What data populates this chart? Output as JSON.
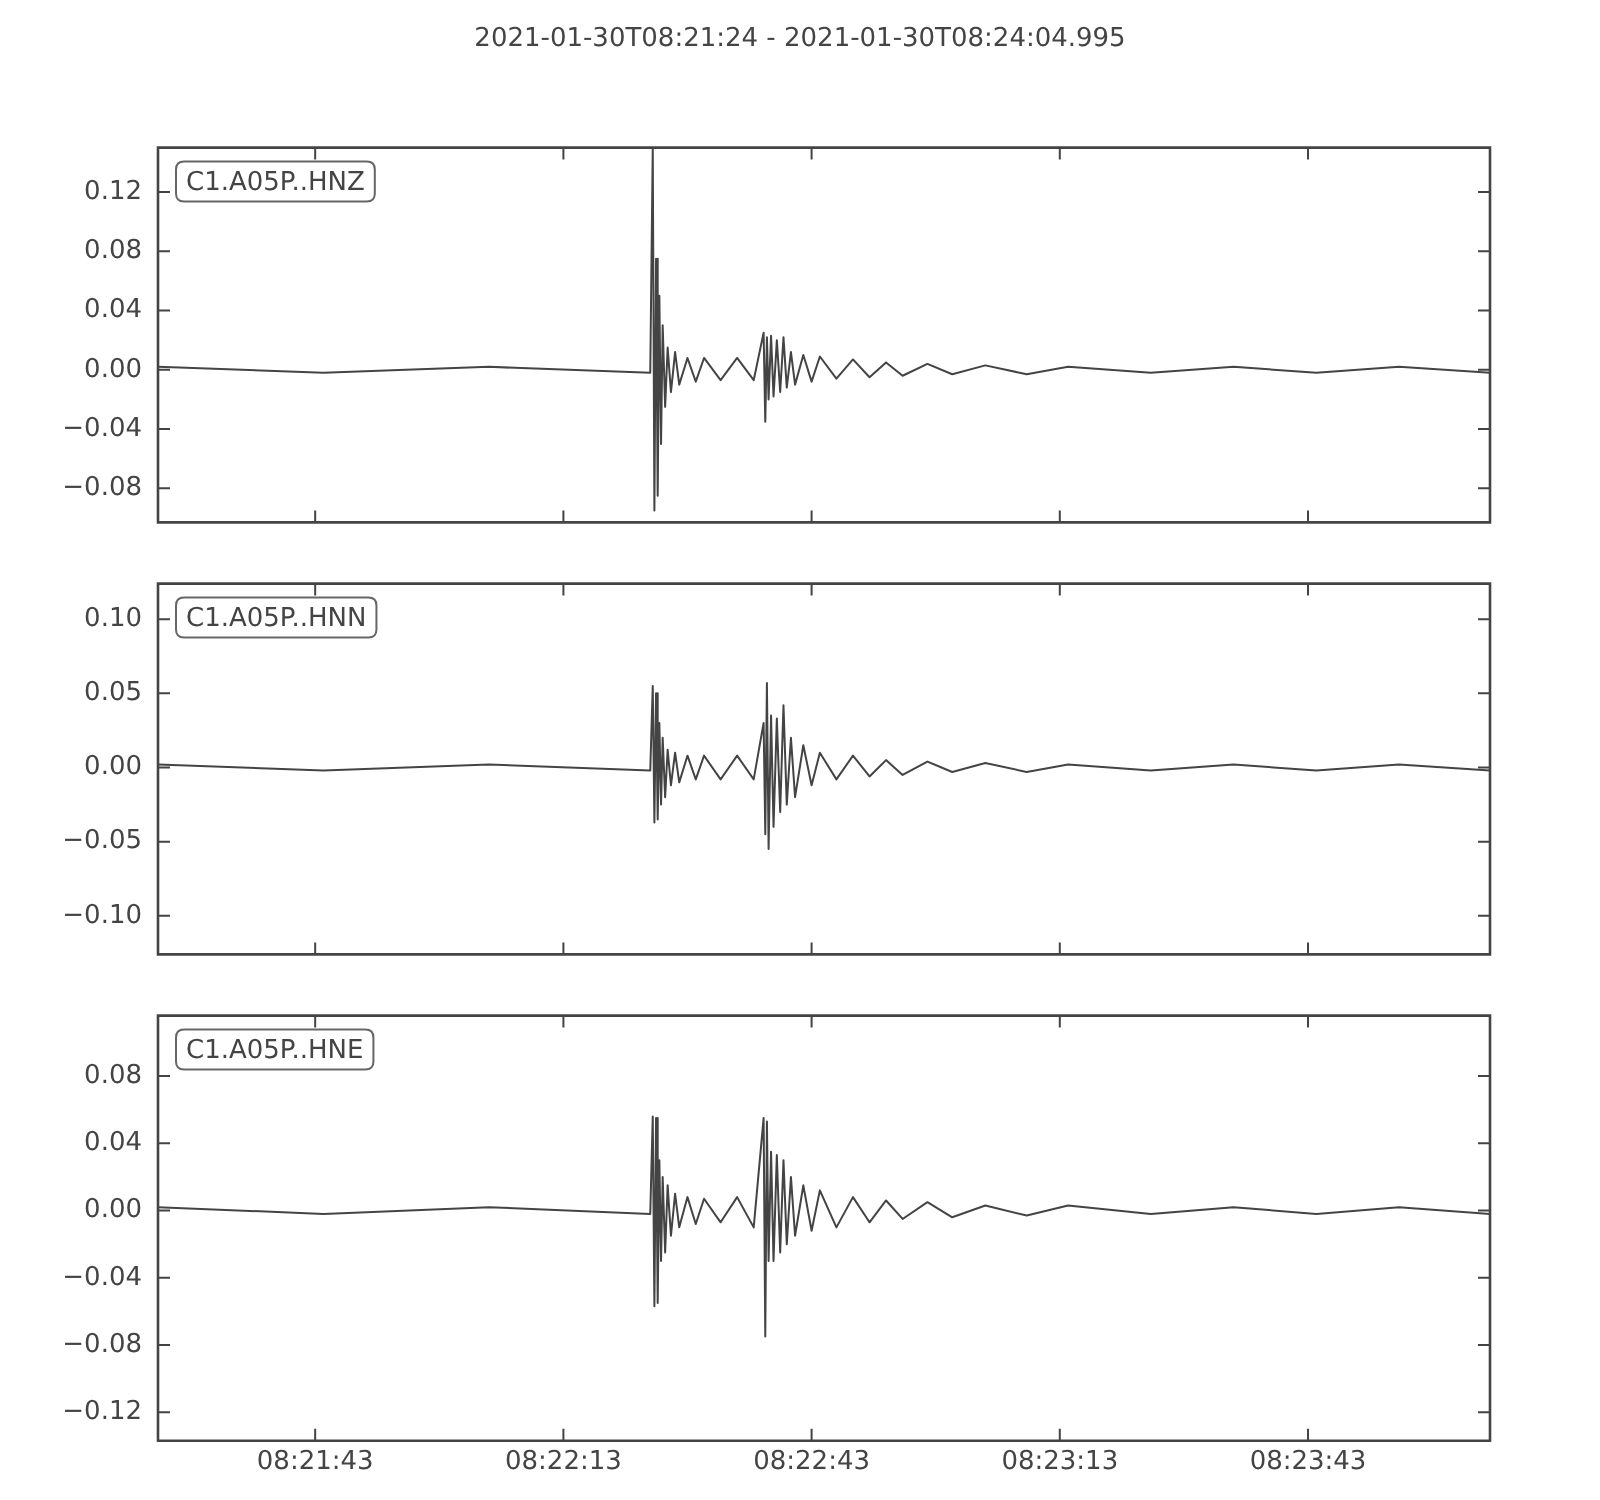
{
  "chart_data": [
    {
      "type": "line",
      "title": "2021-01-30T08:21:24  -  2021-01-30T08:24:04.995",
      "grid": false,
      "tick_labels": "y",
      "marker": "none",
      "line_style": "solid",
      "xlim": [
        8.356667,
        8.401388
      ],
      "ylim": [
        -0.103,
        0.15
      ],
      "xticks": [
        {
          "value": 8.361944,
          "label": null
        },
        {
          "value": 8.370278,
          "label": null
        },
        {
          "value": 8.378611,
          "label": null
        },
        {
          "value": 8.386944,
          "label": null
        },
        {
          "value": 8.395278,
          "label": null
        }
      ],
      "yticks": [
        {
          "value": -0.08,
          "label": "−0.08"
        },
        {
          "value": -0.04,
          "label": "−0.04"
        },
        {
          "value": 0,
          "label": "0.00"
        },
        {
          "value": 0.04,
          "label": "0.04"
        },
        {
          "value": 0.08,
          "label": "0.08"
        },
        {
          "value": 0.12,
          "label": "0.12"
        }
      ],
      "x": [
        8.356667,
        8.362222,
        8.367778,
        8.373194,
        8.373278,
        8.373333,
        8.373389,
        8.373444,
        8.3735,
        8.373556,
        8.373611,
        8.373694,
        8.373778,
        8.373889,
        8.374028,
        8.374167,
        8.374444,
        8.374722,
        8.375,
        8.375556,
        8.376111,
        8.376667,
        8.377,
        8.377056,
        8.377111,
        8.377167,
        8.37725,
        8.377333,
        8.377444,
        8.377556,
        8.377667,
        8.377778,
        8.377917,
        8.378056,
        8.378333,
        8.378611,
        8.378889,
        8.379444,
        8.38,
        8.380556,
        8.381111,
        8.381667,
        8.3825,
        8.383333,
        8.384444,
        8.385833,
        8.387222,
        8.39,
        8.392778,
        8.395556,
        8.398333,
        8.401388
      ],
      "series": [
        {
          "name": "C1.A05P..HNZ",
          "color": "#444444",
          "values": [
            0.002,
            -0.002,
            0.002,
            -0.002,
            0.15,
            -0.095,
            0.075,
            -0.085,
            0.05,
            -0.05,
            0.03,
            -0.025,
            0.015,
            -0.015,
            0.012,
            -0.01,
            0.008,
            -0.008,
            0.008,
            -0.007,
            0.008,
            -0.007,
            0.025,
            -0.035,
            0.022,
            -0.02,
            0.023,
            -0.018,
            0.02,
            -0.015,
            0.022,
            -0.012,
            0.012,
            -0.01,
            0.01,
            -0.008,
            0.009,
            -0.006,
            0.007,
            -0.005,
            0.005,
            -0.004,
            0.004,
            -0.003,
            0.003,
            -0.003,
            0.002,
            -0.002,
            0.002,
            -0.002,
            0.002,
            -0.002
          ]
        }
      ]
    },
    {
      "type": "line",
      "grid": false,
      "tick_labels": "y",
      "marker": "none",
      "line_style": "solid",
      "xlim": [
        8.356667,
        8.401388
      ],
      "ylim": [
        -0.126,
        0.124
      ],
      "xticks": [
        {
          "value": 8.361944,
          "label": null
        },
        {
          "value": 8.370278,
          "label": null
        },
        {
          "value": 8.378611,
          "label": null
        },
        {
          "value": 8.386944,
          "label": null
        },
        {
          "value": 8.395278,
          "label": null
        }
      ],
      "yticks": [
        {
          "value": -0.1,
          "label": "−0.10"
        },
        {
          "value": -0.05,
          "label": "−0.05"
        },
        {
          "value": 0,
          "label": "0.00"
        },
        {
          "value": 0.05,
          "label": "0.05"
        },
        {
          "value": 0.1,
          "label": "0.10"
        }
      ],
      "x": [
        8.356667,
        8.362222,
        8.367778,
        8.373194,
        8.373278,
        8.373333,
        8.373389,
        8.373444,
        8.3735,
        8.373556,
        8.373611,
        8.373694,
        8.373778,
        8.373889,
        8.374028,
        8.374167,
        8.374444,
        8.374722,
        8.375,
        8.375556,
        8.376111,
        8.376667,
        8.377,
        8.377056,
        8.377111,
        8.377167,
        8.37725,
        8.377333,
        8.377444,
        8.377556,
        8.377667,
        8.377778,
        8.377917,
        8.378056,
        8.378333,
        8.378611,
        8.378889,
        8.379444,
        8.38,
        8.380556,
        8.381111,
        8.381667,
        8.3825,
        8.383333,
        8.384444,
        8.385833,
        8.387222,
        8.39,
        8.392778,
        8.395556,
        8.398333,
        8.401388
      ],
      "series": [
        {
          "name": "C1.A05P..HNN",
          "color": "#444444",
          "values": [
            0.002,
            -0.002,
            0.002,
            -0.002,
            0.055,
            -0.037,
            0.05,
            -0.035,
            0.03,
            -0.025,
            0.02,
            -0.02,
            0.012,
            -0.012,
            0.01,
            -0.01,
            0.008,
            -0.008,
            0.008,
            -0.008,
            0.008,
            -0.008,
            0.03,
            -0.045,
            0.057,
            -0.055,
            0.035,
            -0.04,
            0.033,
            -0.03,
            0.042,
            -0.025,
            0.02,
            -0.02,
            0.015,
            -0.012,
            0.01,
            -0.008,
            0.008,
            -0.006,
            0.005,
            -0.005,
            0.004,
            -0.003,
            0.003,
            -0.003,
            0.002,
            -0.002,
            0.002,
            -0.002,
            0.002,
            -0.002
          ]
        }
      ]
    },
    {
      "type": "line",
      "grid": false,
      "marker": "none",
      "line_style": "solid",
      "xlim": [
        8.356667,
        8.401388
      ],
      "ylim": [
        -0.137,
        0.116
      ],
      "xticks": [
        {
          "value": 8.361944,
          "label": "08:21:43"
        },
        {
          "value": 8.370278,
          "label": "08:22:13"
        },
        {
          "value": 8.378611,
          "label": "08:22:43"
        },
        {
          "value": 8.386944,
          "label": "08:23:13"
        },
        {
          "value": 8.395278,
          "label": "08:23:43"
        }
      ],
      "yticks": [
        {
          "value": -0.12,
          "label": "−0.12"
        },
        {
          "value": -0.08,
          "label": "−0.08"
        },
        {
          "value": -0.04,
          "label": "−0.04"
        },
        {
          "value": 0,
          "label": "0.00"
        },
        {
          "value": 0.04,
          "label": "0.04"
        },
        {
          "value": 0.08,
          "label": "0.08"
        }
      ],
      "x": [
        8.356667,
        8.362222,
        8.367778,
        8.373194,
        8.373278,
        8.373333,
        8.373389,
        8.373444,
        8.3735,
        8.373556,
        8.373611,
        8.373694,
        8.373778,
        8.373889,
        8.374028,
        8.374167,
        8.374444,
        8.374722,
        8.375,
        8.375556,
        8.376111,
        8.376667,
        8.377,
        8.377056,
        8.377111,
        8.377167,
        8.37725,
        8.377333,
        8.377444,
        8.377556,
        8.377667,
        8.377778,
        8.377917,
        8.378056,
        8.378333,
        8.378611,
        8.378889,
        8.379444,
        8.38,
        8.380556,
        8.381111,
        8.381667,
        8.3825,
        8.383333,
        8.384444,
        8.385833,
        8.387222,
        8.39,
        8.392778,
        8.395556,
        8.398333,
        8.401388
      ],
      "series": [
        {
          "name": "C1.A05P..HNE",
          "color": "#444444",
          "values": [
            0.002,
            -0.002,
            0.002,
            -0.002,
            0.056,
            -0.057,
            0.055,
            -0.055,
            0.03,
            -0.03,
            0.02,
            -0.025,
            0.015,
            -0.015,
            0.01,
            -0.01,
            0.008,
            -0.008,
            0.007,
            -0.007,
            0.008,
            -0.01,
            0.055,
            -0.075,
            0.053,
            -0.03,
            0.035,
            -0.03,
            0.033,
            -0.025,
            0.03,
            -0.02,
            0.02,
            -0.015,
            0.015,
            -0.012,
            0.012,
            -0.01,
            0.008,
            -0.007,
            0.006,
            -0.005,
            0.005,
            -0.004,
            0.003,
            -0.003,
            0.003,
            -0.002,
            0.002,
            -0.002,
            0.002,
            -0.002
          ]
        }
      ]
    }
  ]
}
